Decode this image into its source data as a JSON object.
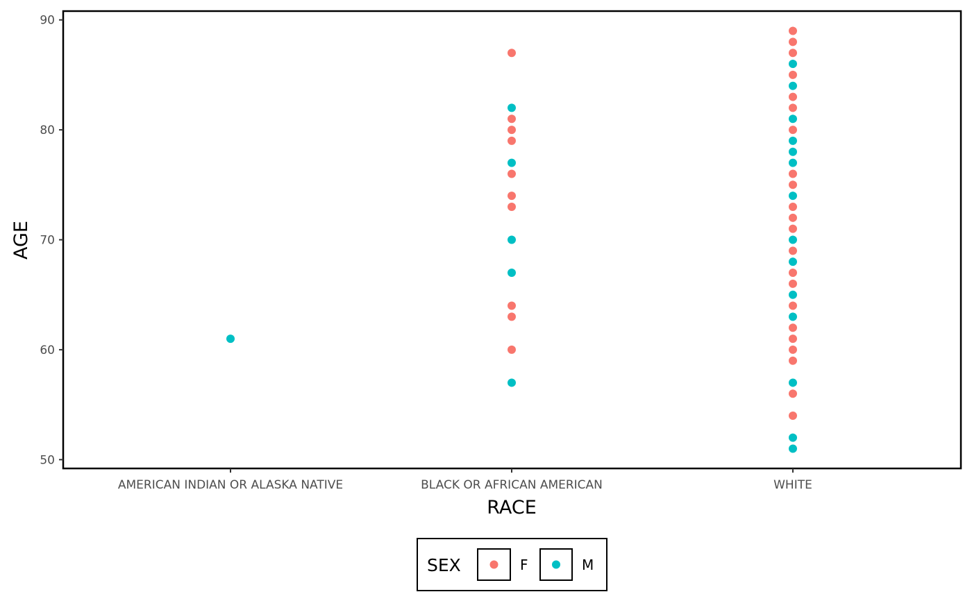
{
  "chart_data": {
    "type": "scatter",
    "xlabel": "RACE",
    "ylabel": "AGE",
    "categories": [
      "AMERICAN INDIAN OR ALASKA NATIVE",
      "BLACK OR AFRICAN AMERICAN",
      "WHITE"
    ],
    "y_ticks": [
      "50",
      "60",
      "70",
      "80",
      "90"
    ],
    "ylim": [
      49.2,
      90.8
    ],
    "grid": false,
    "legend_position": "bottom",
    "legend": {
      "title": "SEX",
      "entries": [
        {
          "label": "F",
          "color": "#F8766D"
        },
        {
          "label": "M",
          "color": "#00BFC4"
        }
      ]
    },
    "series": [
      {
        "name": "F",
        "color": "#F8766D",
        "points": [
          {
            "x": "BLACK OR AFRICAN AMERICAN",
            "y": 87
          },
          {
            "x": "BLACK OR AFRICAN AMERICAN",
            "y": 81
          },
          {
            "x": "BLACK OR AFRICAN AMERICAN",
            "y": 80
          },
          {
            "x": "BLACK OR AFRICAN AMERICAN",
            "y": 79
          },
          {
            "x": "BLACK OR AFRICAN AMERICAN",
            "y": 76
          },
          {
            "x": "BLACK OR AFRICAN AMERICAN",
            "y": 74
          },
          {
            "x": "BLACK OR AFRICAN AMERICAN",
            "y": 73
          },
          {
            "x": "BLACK OR AFRICAN AMERICAN",
            "y": 64
          },
          {
            "x": "BLACK OR AFRICAN AMERICAN",
            "y": 63
          },
          {
            "x": "BLACK OR AFRICAN AMERICAN",
            "y": 60
          },
          {
            "x": "WHITE",
            "y": 89
          },
          {
            "x": "WHITE",
            "y": 88
          },
          {
            "x": "WHITE",
            "y": 87
          },
          {
            "x": "WHITE",
            "y": 85
          },
          {
            "x": "WHITE",
            "y": 83
          },
          {
            "x": "WHITE",
            "y": 82
          },
          {
            "x": "WHITE",
            "y": 80
          },
          {
            "x": "WHITE",
            "y": 76
          },
          {
            "x": "WHITE",
            "y": 75
          },
          {
            "x": "WHITE",
            "y": 73
          },
          {
            "x": "WHITE",
            "y": 72
          },
          {
            "x": "WHITE",
            "y": 71
          },
          {
            "x": "WHITE",
            "y": 69
          },
          {
            "x": "WHITE",
            "y": 67
          },
          {
            "x": "WHITE",
            "y": 66
          },
          {
            "x": "WHITE",
            "y": 64
          },
          {
            "x": "WHITE",
            "y": 62
          },
          {
            "x": "WHITE",
            "y": 61
          },
          {
            "x": "WHITE",
            "y": 60
          },
          {
            "x": "WHITE",
            "y": 59
          },
          {
            "x": "WHITE",
            "y": 56
          },
          {
            "x": "WHITE",
            "y": 54
          }
        ]
      },
      {
        "name": "M",
        "color": "#00BFC4",
        "points": [
          {
            "x": "AMERICAN INDIAN OR ALASKA NATIVE",
            "y": 61
          },
          {
            "x": "BLACK OR AFRICAN AMERICAN",
            "y": 82
          },
          {
            "x": "BLACK OR AFRICAN AMERICAN",
            "y": 77
          },
          {
            "x": "BLACK OR AFRICAN AMERICAN",
            "y": 70
          },
          {
            "x": "BLACK OR AFRICAN AMERICAN",
            "y": 67
          },
          {
            "x": "BLACK OR AFRICAN AMERICAN",
            "y": 57
          },
          {
            "x": "WHITE",
            "y": 86
          },
          {
            "x": "WHITE",
            "y": 84
          },
          {
            "x": "WHITE",
            "y": 81
          },
          {
            "x": "WHITE",
            "y": 79
          },
          {
            "x": "WHITE",
            "y": 78
          },
          {
            "x": "WHITE",
            "y": 77
          },
          {
            "x": "WHITE",
            "y": 74
          },
          {
            "x": "WHITE",
            "y": 70
          },
          {
            "x": "WHITE",
            "y": 68
          },
          {
            "x": "WHITE",
            "y": 65
          },
          {
            "x": "WHITE",
            "y": 63
          },
          {
            "x": "WHITE",
            "y": 57
          },
          {
            "x": "WHITE",
            "y": 52
          },
          {
            "x": "WHITE",
            "y": 51
          }
        ]
      }
    ]
  }
}
